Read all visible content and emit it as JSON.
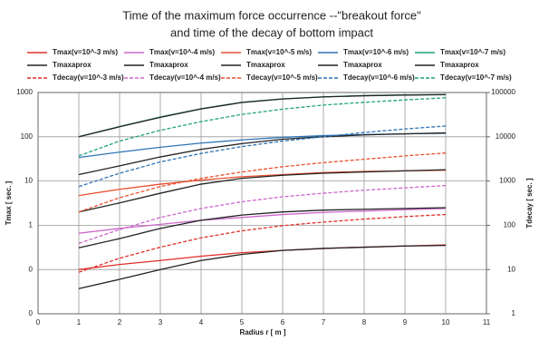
{
  "chart_data": {
    "type": "line",
    "title": "Time of the maximum force occurrence --\"breakout force\"",
    "subtitle": "and time of the decay of bottom impact",
    "x_label": "Radius r [ m ]",
    "y_label": "Tmax [ sec. ]",
    "y2_label": "Tdecay [ sec. ]",
    "x": [
      1,
      2,
      3,
      4,
      5,
      6,
      7,
      8,
      9,
      10
    ],
    "xlim": [
      0,
      11
    ],
    "xticks": [
      0,
      1,
      2,
      3,
      4,
      5,
      6,
      7,
      8,
      9,
      10,
      11
    ],
    "ylim": [
      0.01,
      1000
    ],
    "yticks": [
      {
        "value": 0.01,
        "label": "0"
      },
      {
        "value": 0.1,
        "label": "0"
      },
      1,
      10,
      100,
      1000
    ],
    "y2lim": [
      1,
      100000
    ],
    "y2ticks": [
      1,
      10,
      100,
      1000,
      10000,
      100000
    ],
    "y_log": true,
    "grid": true,
    "series": [
      {
        "name": "Tmax(v=10^-3 m/s)",
        "color": "#e0302a",
        "dashed": false,
        "values": [
          0.1,
          0.13,
          0.16,
          0.2,
          0.24,
          0.27,
          0.3,
          0.32,
          0.34,
          0.36
        ]
      },
      {
        "name": "Tmax(v=10^-4 m/s)",
        "color": "#cc66cc",
        "dashed": false,
        "values": [
          0.66,
          0.85,
          1.05,
          1.3,
          1.5,
          1.75,
          1.95,
          2.1,
          2.25,
          2.4
        ]
      },
      {
        "name": "Tmax(v=10^-5 m/s)",
        "color": "#e8502f",
        "dashed": false,
        "values": [
          4.7,
          6.5,
          8.5,
          10.5,
          12.5,
          14,
          15.5,
          16.5,
          17,
          17.5
        ]
      },
      {
        "name": "Tmax(v=10^-6 m/s)",
        "color": "#2e75b6",
        "dashed": false,
        "values": [
          34,
          45,
          58,
          72,
          85,
          97,
          106,
          112,
          117,
          120
        ]
      },
      {
        "name": "Tmax(v=10^-7 m/s)",
        "color": "#1fa37a",
        "dashed": false,
        "values": [
          100,
          170,
          280,
          430,
          600,
          720,
          800,
          850,
          880,
          900
        ]
      },
      {
        "name": "Tmaxaprox",
        "color": "#222222",
        "dashed": false,
        "values": [
          0.037,
          0.06,
          0.1,
          0.16,
          0.22,
          0.27,
          0.3,
          0.32,
          0.34,
          0.35
        ]
      },
      {
        "name": "Tmaxaprox",
        "color": "#222222",
        "dashed": false,
        "values": [
          0.31,
          0.5,
          0.85,
          1.3,
          1.7,
          2.0,
          2.2,
          2.3,
          2.4,
          2.5
        ]
      },
      {
        "name": "Tmaxaprox",
        "color": "#222222",
        "dashed": false,
        "values": [
          2,
          3.2,
          5.3,
          8.5,
          11.5,
          13.5,
          15,
          16,
          17,
          18
        ]
      },
      {
        "name": "Tmaxaprox",
        "color": "#222222",
        "dashed": false,
        "values": [
          14,
          22,
          35,
          52,
          70,
          88,
          100,
          110,
          116,
          122
        ]
      },
      {
        "name": "Tmaxaprox",
        "color": "#222222",
        "dashed": false,
        "values": [
          100,
          168,
          275,
          425,
          595,
          715,
          795,
          845,
          875,
          895
        ]
      },
      {
        "name": "Tdecay(v=10^-3 m/s)",
        "color": "#e0302a",
        "dashed": true,
        "axis": "y2",
        "values": [
          8.7,
          18,
          32,
          52,
          75,
          98,
          118,
          138,
          157,
          175
        ]
      },
      {
        "name": "Tdecay(v=10^-4 m/s)",
        "color": "#cc66cc",
        "dashed": true,
        "axis": "y2",
        "values": [
          39,
          80,
          150,
          240,
          340,
          440,
          530,
          620,
          700,
          790
        ]
      },
      {
        "name": "Tdecay(v=10^-5 m/s)",
        "color": "#e8502f",
        "dashed": true,
        "axis": "y2",
        "values": [
          200,
          420,
          750,
          1150,
          1600,
          2100,
          2600,
          3100,
          3700,
          4300
        ]
      },
      {
        "name": "Tdecay(v=10^-6 m/s)",
        "color": "#2e75b6",
        "dashed": true,
        "axis": "y2",
        "values": [
          750,
          1500,
          2700,
          4200,
          6000,
          8000,
          10000,
          12500,
          15000,
          17500
        ]
      },
      {
        "name": "Tdecay(v=10^-7 m/s)",
        "color": "#1fa37a",
        "dashed": true,
        "axis": "y2",
        "values": [
          3700,
          8000,
          14000,
          22000,
          32000,
          42000,
          52000,
          60000,
          68000,
          76000
        ]
      }
    ]
  }
}
